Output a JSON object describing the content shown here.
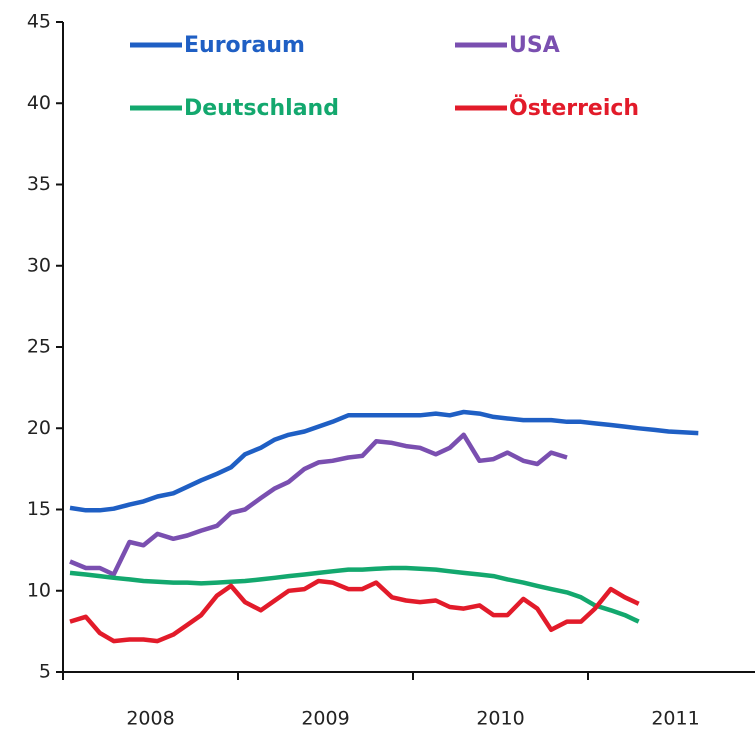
{
  "chart_data": {
    "type": "line",
    "x": [
      2008.04,
      2008.13,
      2008.21,
      2008.29,
      2008.38,
      2008.46,
      2008.54,
      2008.63,
      2008.71,
      2008.79,
      2008.88,
      2008.96,
      2009.04,
      2009.13,
      2009.21,
      2009.29,
      2009.38,
      2009.46,
      2009.54,
      2009.63,
      2009.71,
      2009.79,
      2009.88,
      2009.96,
      2010.04,
      2010.13,
      2010.21,
      2010.29,
      2010.38,
      2010.46,
      2010.54,
      2010.63,
      2010.71,
      2010.79,
      2010.88,
      2010.96,
      2011.04,
      2011.13,
      2011.21,
      2011.29,
      2011.38,
      2011.46,
      2011.54,
      2011.63
    ],
    "series": [
      {
        "name": "Euroraum",
        "color": "#1f5fc4",
        "values": [
          15.1,
          14.95,
          14.95,
          15.05,
          15.3,
          15.5,
          15.8,
          16.0,
          16.4,
          16.8,
          17.2,
          17.6,
          18.4,
          18.8,
          19.3,
          19.6,
          19.8,
          20.1,
          20.4,
          20.8,
          20.8,
          20.8,
          20.8,
          20.8,
          20.8,
          20.9,
          20.8,
          21.0,
          20.9,
          20.7,
          20.6,
          20.5,
          20.5,
          20.5,
          20.4,
          20.4,
          20.3,
          20.2,
          20.1,
          20.0,
          19.9,
          19.8,
          19.75,
          19.7
        ]
      },
      {
        "name": "USA",
        "color": "#7a4fb0",
        "values": [
          11.8,
          11.4,
          11.4,
          11.0,
          13.0,
          12.8,
          13.5,
          13.2,
          13.4,
          13.7,
          14.0,
          14.8,
          15.0,
          15.7,
          16.3,
          16.7,
          17.5,
          17.9,
          18.0,
          18.2,
          18.3,
          19.2,
          19.1,
          18.9,
          18.8,
          18.4,
          18.8,
          19.6,
          18.0,
          18.1,
          18.5,
          18.0,
          17.8,
          18.5,
          18.2,
          null,
          null,
          null,
          null,
          null,
          null,
          null,
          null,
          null
        ]
      },
      {
        "name": "Deutschland",
        "color": "#13a86e",
        "values": [
          11.1,
          11.0,
          10.9,
          10.8,
          10.7,
          10.6,
          10.55,
          10.5,
          10.5,
          10.45,
          10.5,
          10.55,
          10.6,
          10.7,
          10.8,
          10.9,
          11.0,
          11.1,
          11.2,
          11.3,
          11.3,
          11.35,
          11.4,
          11.4,
          11.35,
          11.3,
          11.2,
          11.1,
          11.0,
          10.9,
          10.7,
          10.5,
          10.3,
          10.1,
          9.9,
          9.6,
          9.1,
          8.8,
          8.5,
          8.1,
          null,
          null,
          null,
          null
        ]
      },
      {
        "name": "Österreich",
        "color": "#e21b2a",
        "values": [
          8.1,
          8.4,
          7.4,
          6.9,
          7.0,
          7.0,
          6.9,
          7.3,
          7.9,
          8.5,
          9.7,
          10.3,
          9.3,
          8.8,
          9.4,
          10.0,
          10.1,
          10.6,
          10.5,
          10.1,
          10.1,
          10.5,
          9.6,
          9.4,
          9.3,
          9.4,
          9.0,
          8.9,
          9.1,
          8.5,
          8.5,
          9.5,
          8.9,
          7.6,
          8.1,
          8.1,
          8.9,
          10.1,
          9.6,
          9.2,
          null,
          null,
          null,
          null
        ]
      }
    ],
    "xlim": [
      2008,
      2012
    ],
    "xticks": [
      2008,
      2009,
      2010,
      2011
    ],
    "ylim": [
      5,
      45
    ],
    "yticks": [
      5,
      10,
      15,
      20,
      25,
      30,
      35,
      40,
      45
    ]
  }
}
